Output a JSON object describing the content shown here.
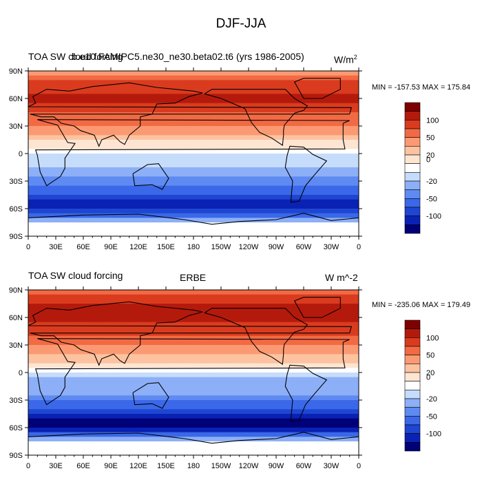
{
  "figure_title": "DJF-JJA",
  "colors": {
    "levels": [
      -100,
      -70,
      -50,
      -30,
      -20,
      -10,
      0,
      10,
      20,
      30,
      50,
      70,
      100
    ],
    "fills": [
      "#000078",
      "#0A22B4",
      "#1E46D2",
      "#3A68E8",
      "#5E8AF2",
      "#8CAFF7",
      "#C6DCFB",
      "#FFFFFF",
      "#FEE5D2",
      "#FDC3A0",
      "#FB9A72",
      "#F26A44",
      "#DA3B1E",
      "#B41A0C",
      "#7E0000"
    ],
    "land_line": "#000000",
    "missing": "#FFFFFF"
  },
  "colorbar": {
    "tick_labels": [
      "100",
      "50",
      "20",
      "0",
      "-20",
      "-50",
      "-100"
    ]
  },
  "chart_data": [
    {
      "type": "heatmap",
      "title_left": "TOA SW cloud forcing",
      "title_center": "b.e10.FAMIPC5.ne30_ne30.beta02.t6 (yrs 1986-2005)",
      "units": "W/m",
      "units_sup": "2",
      "minmax": "MIN = -157.53 MAX = 175.84",
      "x_ticks": [
        "0",
        "30E",
        "60E",
        "90E",
        "120E",
        "150E",
        "180",
        "150W",
        "120W",
        "90W",
        "60W",
        "30W",
        "0"
      ],
      "y_ticks": [
        "90N",
        "60N",
        "30N",
        "0",
        "30S",
        "60S",
        "90S"
      ],
      "xlim": [
        0,
        360
      ],
      "ylim": [
        -90,
        90
      ],
      "zonal_profile": {
        "lat": [
          90,
          75,
          60,
          45,
          30,
          15,
          5,
          0,
          -5,
          -15,
          -30,
          -45,
          -55,
          -65,
          -75,
          -90
        ],
        "value": [
          40,
          80,
          110,
          70,
          50,
          20,
          10,
          0,
          -10,
          -10,
          -25,
          -50,
          -85,
          -45,
          0,
          0
        ]
      }
    },
    {
      "type": "heatmap",
      "title_left": "TOA SW cloud forcing",
      "title_center": "ERBE",
      "units": "W m^-2",
      "units_sup": "",
      "minmax": "MIN = -235.06 MAX = 179.49",
      "x_ticks": [
        "0",
        "30E",
        "60E",
        "90E",
        "120E",
        "150E",
        "180",
        "150W",
        "120W",
        "90W",
        "60W",
        "30W",
        "0"
      ],
      "y_ticks": [
        "90N",
        "60N",
        "30N",
        "0",
        "30S",
        "60S",
        "90S"
      ],
      "xlim": [
        0,
        360
      ],
      "ylim": [
        -90,
        90
      ],
      "zonal_profile": {
        "lat": [
          90,
          75,
          60,
          45,
          30,
          15,
          5,
          0,
          -5,
          -15,
          -30,
          -45,
          -55,
          -65,
          -75,
          -90
        ],
        "value": [
          60,
          100,
          110,
          80,
          50,
          25,
          10,
          0,
          -15,
          -10,
          -30,
          -60,
          -120,
          -60,
          0,
          0
        ]
      }
    }
  ]
}
